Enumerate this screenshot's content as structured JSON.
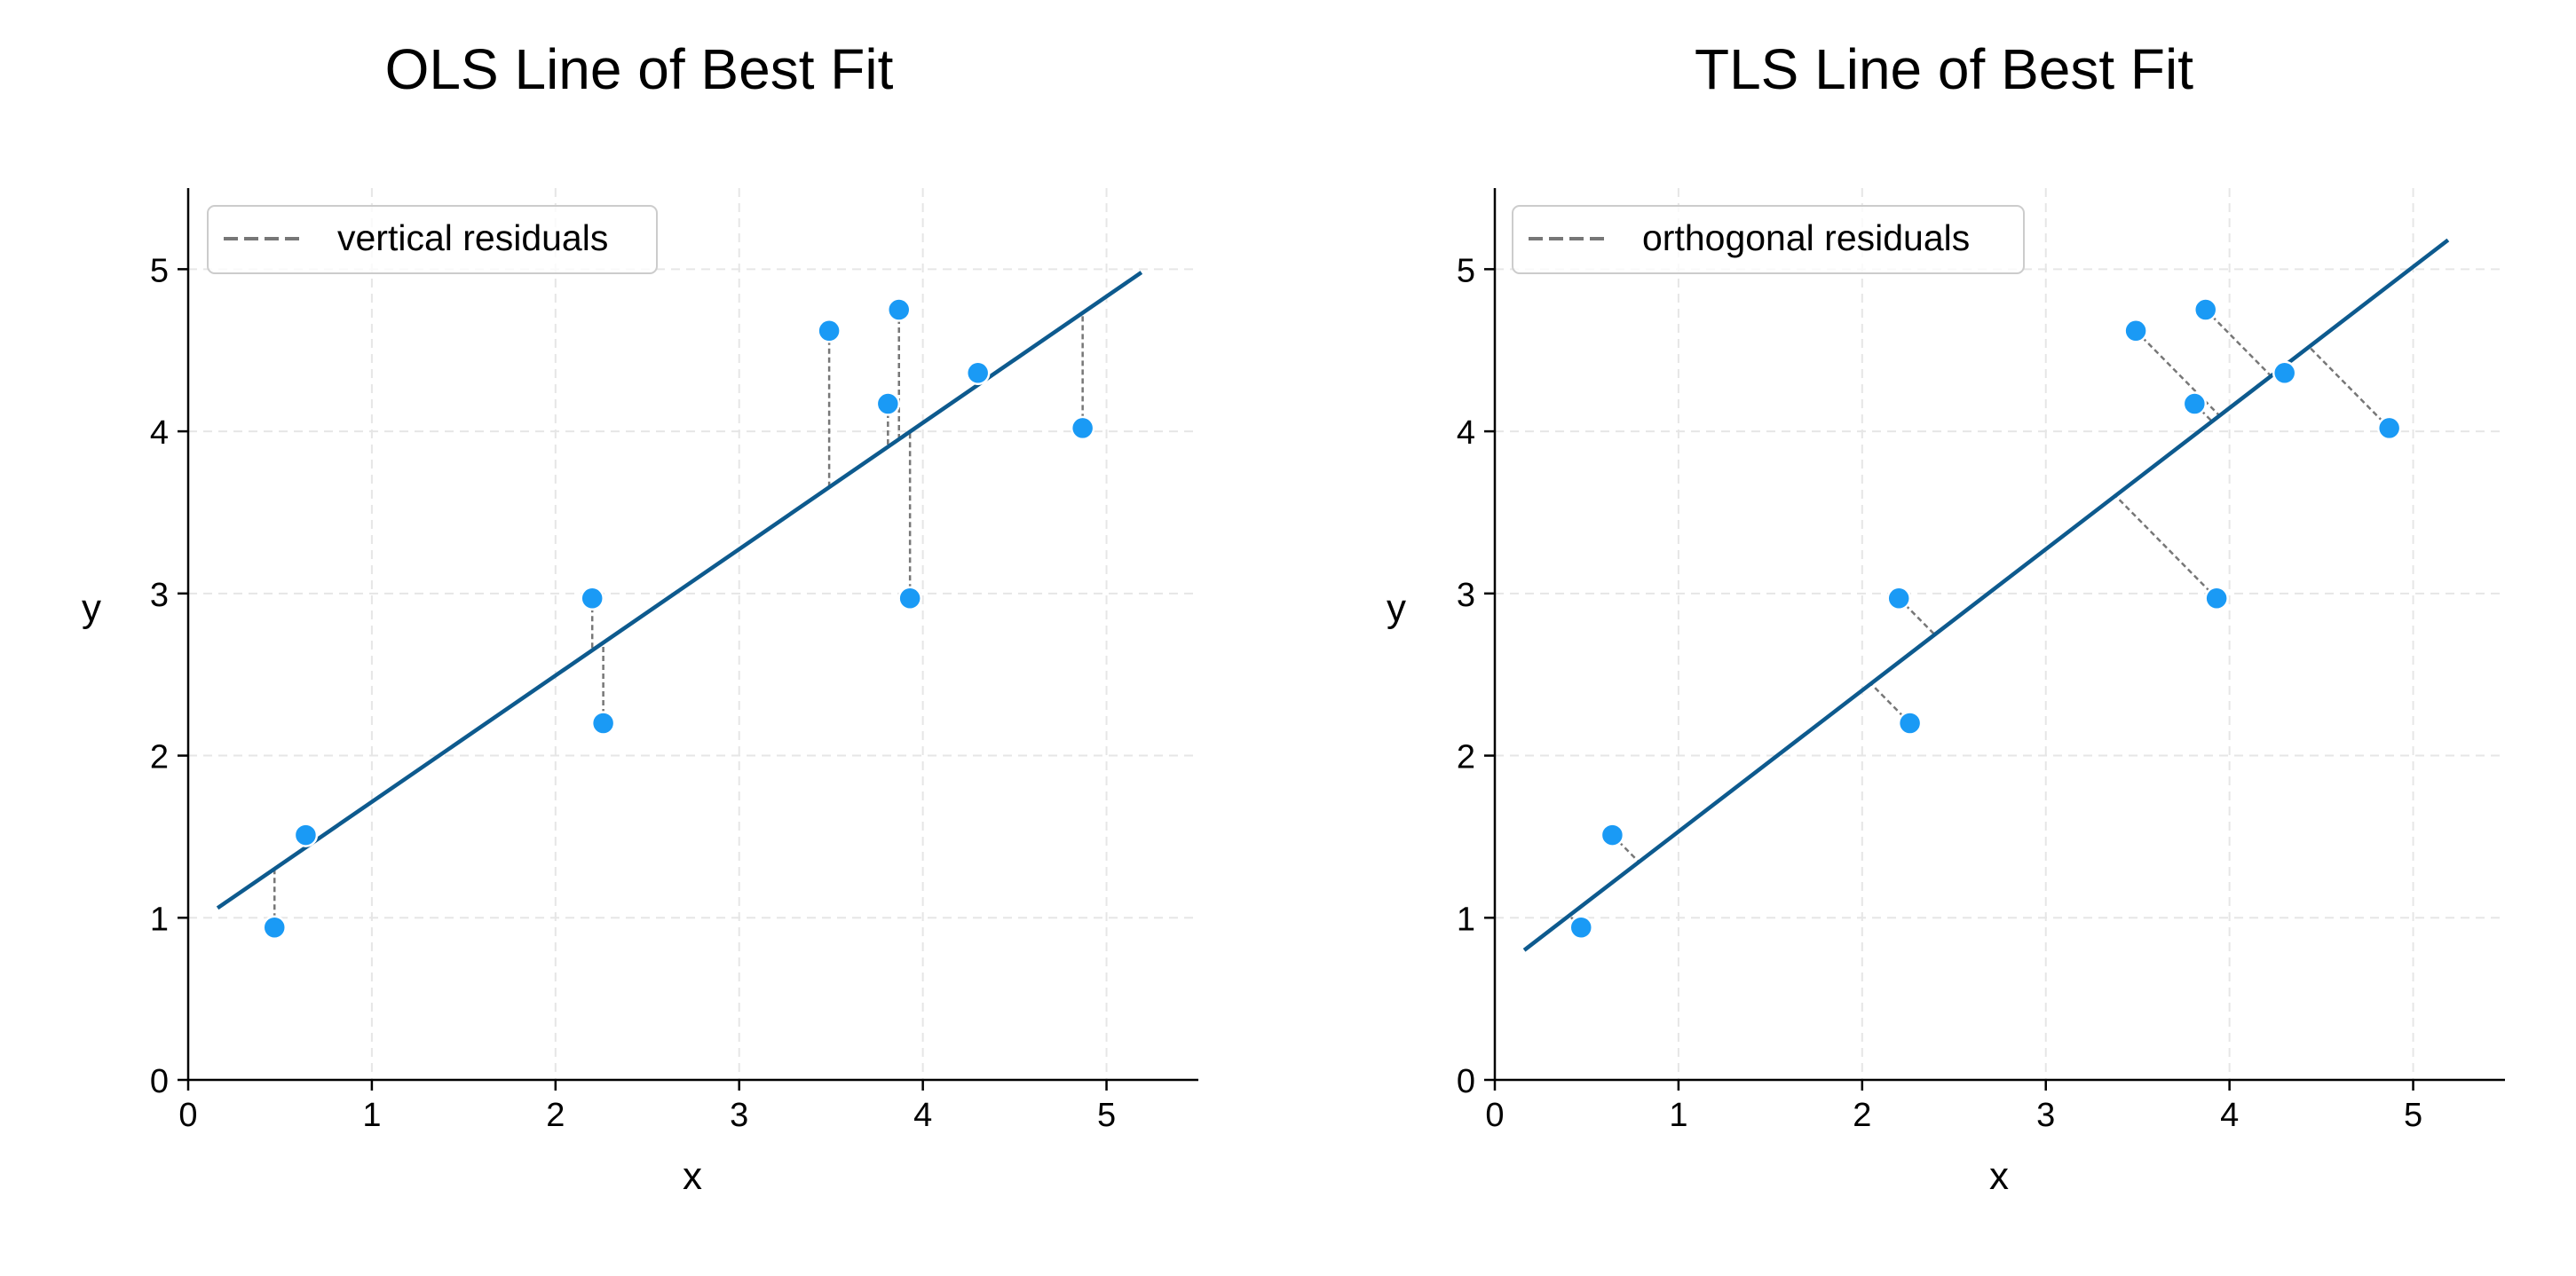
{
  "chart_data": [
    {
      "type": "scatter",
      "title": "OLS Line of Best Fit",
      "xlabel": "x",
      "ylabel": "y",
      "xlim": [
        0,
        5.5
      ],
      "ylim": [
        0,
        5.5
      ],
      "xticks": [
        0,
        1,
        2,
        3,
        4,
        5
      ],
      "yticks": [
        0,
        1,
        2,
        3,
        4,
        5
      ],
      "grid": true,
      "legend": {
        "position": "top-left",
        "label": "vertical residuals"
      },
      "points": [
        {
          "x": 0.47,
          "y": 0.94
        },
        {
          "x": 0.64,
          "y": 1.51
        },
        {
          "x": 2.2,
          "y": 2.97
        },
        {
          "x": 2.26,
          "y": 2.2
        },
        {
          "x": 3.49,
          "y": 4.62
        },
        {
          "x": 3.81,
          "y": 4.17
        },
        {
          "x": 3.87,
          "y": 4.75
        },
        {
          "x": 3.93,
          "y": 2.97
        },
        {
          "x": 4.3,
          "y": 4.36
        },
        {
          "x": 4.87,
          "y": 4.02
        }
      ],
      "fit_line": {
        "x0": 0.16,
        "y0": 1.06,
        "x1": 5.19,
        "y1": 4.98
      },
      "residuals": "vertical",
      "colors": {
        "points": "#1a9af5",
        "line": "#0d5a8e",
        "residual": "#777777"
      }
    },
    {
      "type": "scatter",
      "title": "TLS Line of Best Fit",
      "xlabel": "x",
      "ylabel": "y",
      "xlim": [
        0,
        5.5
      ],
      "ylim": [
        0,
        5.5
      ],
      "xticks": [
        0,
        1,
        2,
        3,
        4,
        5
      ],
      "yticks": [
        0,
        1,
        2,
        3,
        4,
        5
      ],
      "grid": true,
      "legend": {
        "position": "top-left",
        "label": "orthogonal residuals"
      },
      "points": [
        {
          "x": 0.47,
          "y": 0.94
        },
        {
          "x": 0.64,
          "y": 1.51
        },
        {
          "x": 2.2,
          "y": 2.97
        },
        {
          "x": 2.26,
          "y": 2.2
        },
        {
          "x": 3.49,
          "y": 4.62
        },
        {
          "x": 3.81,
          "y": 4.17
        },
        {
          "x": 3.87,
          "y": 4.75
        },
        {
          "x": 3.93,
          "y": 2.97
        },
        {
          "x": 4.3,
          "y": 4.36
        },
        {
          "x": 4.87,
          "y": 4.02
        }
      ],
      "fit_line": {
        "x0": 0.16,
        "y0": 0.8,
        "x1": 5.19,
        "y1": 5.18
      },
      "residuals": "orthogonal",
      "colors": {
        "points": "#1a9af5",
        "line": "#0d5a8e",
        "residual": "#777777"
      }
    }
  ]
}
